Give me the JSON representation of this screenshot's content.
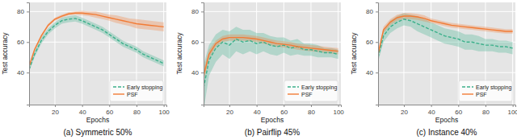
{
  "chart_data": [
    {
      "type": "line",
      "title": "(a) Symmetric 50%",
      "x_label": "Epochs",
      "y_label": "Test accuracy",
      "x": [
        1,
        5,
        10,
        15,
        20,
        25,
        30,
        35,
        40,
        45,
        50,
        55,
        60,
        65,
        70,
        75,
        80,
        85,
        90,
        95,
        100
      ],
      "xlim": [
        1,
        102
      ],
      "xticks": [
        20,
        40,
        60,
        80,
        100
      ],
      "ylim": [
        19,
        86
      ],
      "yticks": [
        40,
        60,
        80
      ],
      "grid": true,
      "legend": "lower right",
      "series": [
        {
          "name": "Early stopping",
          "color": "#3cb08b",
          "line_style": "dashed",
          "values": [
            42,
            52,
            61,
            67,
            71,
            74,
            75,
            75.5,
            74,
            72,
            70,
            68,
            65,
            62,
            59,
            57,
            55,
            52,
            50,
            48,
            46
          ],
          "errors": [
            1.5,
            2,
            2,
            2,
            2,
            2,
            2,
            2,
            2,
            2,
            2,
            2,
            2,
            2,
            2,
            2,
            2,
            2,
            2,
            2,
            2
          ]
        },
        {
          "name": "PSF",
          "color": "#f27b35",
          "line_style": "solid",
          "values": [
            44,
            55,
            64,
            71,
            75,
            77,
            78.5,
            79,
            79,
            78.5,
            78,
            77,
            76,
            75,
            74,
            73,
            72,
            71.5,
            71,
            70.5,
            70
          ],
          "errors": [
            1,
            1,
            1,
            1,
            1,
            1,
            1,
            1,
            1.5,
            1.5,
            2,
            2,
            2,
            2.5,
            2.5,
            2.5,
            3,
            3,
            3,
            3,
            3
          ]
        }
      ]
    },
    {
      "type": "line",
      "title": "(b) Pairflip 45%",
      "x_label": "Epochs",
      "y_label": "Test accuracy",
      "x": [
        1,
        5,
        10,
        15,
        20,
        25,
        30,
        35,
        40,
        45,
        50,
        55,
        60,
        65,
        70,
        75,
        80,
        85,
        90,
        95,
        100
      ],
      "xlim": [
        1,
        102
      ],
      "xticks": [
        20,
        40,
        60,
        80,
        100
      ],
      "ylim": [
        19,
        86
      ],
      "yticks": [
        40,
        60,
        80
      ],
      "grid": true,
      "legend": "lower right",
      "series": [
        {
          "name": "Early stopping",
          "color": "#3cb08b",
          "line_style": "dashed",
          "values": [
            30,
            48,
            56,
            60,
            58,
            62,
            60,
            61,
            59,
            60,
            58,
            57,
            58,
            56,
            57,
            55,
            55,
            54,
            53,
            53,
            52
          ],
          "errors": [
            15,
            10,
            9,
            8,
            9,
            8,
            8,
            7,
            7,
            6,
            6,
            6,
            5,
            5,
            5,
            4,
            4,
            4,
            3,
            3,
            3
          ]
        },
        {
          "name": "PSF",
          "color": "#f27b35",
          "line_style": "solid",
          "values": [
            38,
            52,
            59,
            62,
            63,
            63,
            63,
            62.5,
            62,
            61,
            60,
            59,
            58.5,
            58,
            57,
            56.5,
            56,
            55.5,
            55,
            54.5,
            54
          ],
          "errors": [
            4,
            3,
            2,
            2,
            2,
            2,
            2,
            2,
            2,
            2,
            2,
            2,
            2,
            2,
            2,
            2,
            2,
            2,
            2,
            2,
            2
          ]
        }
      ]
    },
    {
      "type": "line",
      "title": "(c) Instance 40%",
      "x_label": "Epochs",
      "y_label": "Test accuracy",
      "x": [
        1,
        5,
        10,
        15,
        20,
        25,
        30,
        35,
        40,
        45,
        50,
        55,
        60,
        65,
        70,
        75,
        80,
        85,
        90,
        95,
        100
      ],
      "xlim": [
        1,
        102
      ],
      "xticks": [
        20,
        40,
        60,
        80,
        100
      ],
      "ylim": [
        19,
        86
      ],
      "yticks": [
        40,
        60,
        80
      ],
      "grid": true,
      "legend": "lower right",
      "series": [
        {
          "name": "Early stopping",
          "color": "#3cb08b",
          "line_style": "dashed",
          "values": [
            50,
            64,
            70,
            73,
            75,
            74,
            72,
            70,
            68,
            66,
            64,
            63,
            62,
            60,
            60,
            59,
            58,
            58,
            57,
            57,
            56
          ],
          "errors": [
            3,
            4,
            4,
            4,
            4,
            4,
            5,
            5,
            5,
            5,
            5,
            5,
            5,
            5,
            5,
            5,
            4,
            4,
            4,
            4,
            4
          ]
        },
        {
          "name": "PSF",
          "color": "#f27b35",
          "line_style": "solid",
          "values": [
            52,
            68,
            73,
            76,
            77,
            77,
            76.5,
            75.5,
            74,
            73,
            72,
            71,
            70.5,
            70,
            69.5,
            69,
            68.5,
            68,
            67.5,
            67,
            67
          ],
          "errors": [
            2,
            2,
            2,
            2,
            2,
            2,
            2,
            2,
            1.5,
            1.5,
            1.5,
            1.5,
            1.5,
            1.5,
            1.5,
            1.5,
            1.5,
            1.5,
            1.5,
            1.5,
            1.5
          ]
        }
      ]
    }
  ]
}
